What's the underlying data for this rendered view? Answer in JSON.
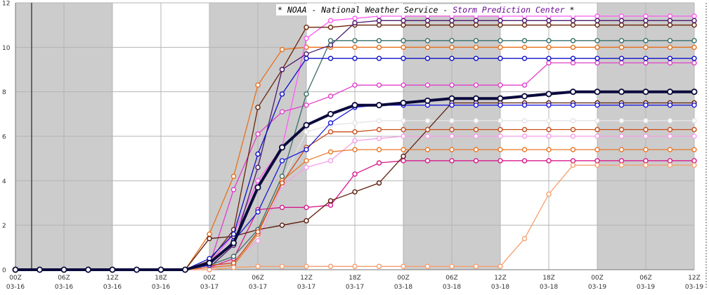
{
  "chart_data": {
    "type": "line",
    "title_parts": [
      {
        "text": "* NOAA - National Weather Service - ",
        "color": "#000000"
      },
      {
        "text": "Storm Prediction Center",
        "color": "#6a0d91"
      },
      {
        "text": " *",
        "color": "#000000"
      }
    ],
    "ylim": [
      0,
      12
    ],
    "yticks": [
      0,
      2,
      4,
      6,
      8,
      10,
      12
    ],
    "xlim": [
      0,
      84
    ],
    "xticks": [
      {
        "x": 0,
        "hour": "00Z",
        "date": "03-16"
      },
      {
        "x": 6,
        "hour": "06Z",
        "date": "03-16"
      },
      {
        "x": 12,
        "hour": "12Z",
        "date": "03-16"
      },
      {
        "x": 18,
        "hour": "18Z",
        "date": "03-16"
      },
      {
        "x": 24,
        "hour": "00Z",
        "date": "03-17"
      },
      {
        "x": 30,
        "hour": "06Z",
        "date": "03-17"
      },
      {
        "x": 36,
        "hour": "12Z",
        "date": "03-17"
      },
      {
        "x": 42,
        "hour": "18Z",
        "date": "03-17"
      },
      {
        "x": 48,
        "hour": "00Z",
        "date": "03-18"
      },
      {
        "x": 54,
        "hour": "06Z",
        "date": "03-18"
      },
      {
        "x": 60,
        "hour": "12Z",
        "date": "03-18"
      },
      {
        "x": 66,
        "hour": "18Z",
        "date": "03-18"
      },
      {
        "x": 72,
        "hour": "00Z",
        "date": "03-19"
      },
      {
        "x": 78,
        "hour": "06Z",
        "date": "03-19"
      },
      {
        "x": 84,
        "hour": "12Z",
        "date": "03-19"
      }
    ],
    "night_bands": [
      [
        0,
        12
      ],
      [
        24,
        36
      ],
      [
        48,
        60
      ],
      [
        72,
        84
      ]
    ],
    "x": [
      0,
      3,
      6,
      9,
      12,
      15,
      18,
      21,
      24,
      27,
      30,
      33,
      36,
      39,
      42,
      45,
      48,
      51,
      54,
      57,
      60,
      63,
      66,
      69,
      72,
      75,
      78,
      81,
      84
    ],
    "series": [
      {
        "color": "#e4e4e4",
        "values": [
          0,
          0,
          0,
          0,
          0,
          0,
          0,
          0,
          0.1,
          0.5,
          1.5,
          4.0,
          6.2,
          6.5,
          6.6,
          6.7,
          6.7,
          6.7,
          6.7,
          6.7,
          6.7,
          6.7,
          6.7,
          6.7,
          6.7,
          6.7,
          6.7,
          6.7,
          6.7
        ]
      },
      {
        "color": "#e8701c",
        "values": [
          0,
          0,
          0,
          0,
          0,
          0,
          0,
          0,
          1.6,
          4.2,
          8.3,
          9.9,
          10.0,
          10.0,
          10.0,
          10.0,
          10.0,
          10.0,
          10.0,
          10.0,
          10.0,
          10.0,
          10.0,
          10.0,
          10.0,
          10.0,
          10.0,
          10.0,
          10.0
        ]
      },
      {
        "color": "#f5a0e8",
        "values": [
          0,
          0,
          0,
          0,
          0,
          0,
          0,
          0,
          0,
          0.4,
          1.3,
          3.8,
          4.6,
          4.9,
          5.8,
          5.9,
          6.0,
          6.0,
          6.0,
          6.0,
          6.0,
          6.0,
          6.0,
          6.0,
          6.0,
          6.0,
          6.0,
          6.0,
          6.0
        ]
      },
      {
        "color": "#ff5cf4",
        "values": [
          0,
          0,
          0,
          0,
          0,
          0,
          0,
          0,
          0.3,
          1.6,
          4.0,
          5.5,
          10.4,
          11.2,
          11.3,
          11.4,
          11.4,
          11.4,
          11.4,
          11.4,
          11.4,
          11.4,
          11.4,
          11.4,
          11.4,
          11.4,
          11.4,
          11.4,
          11.4
        ]
      },
      {
        "color": "#e040c8",
        "values": [
          0,
          0,
          0,
          0,
          0,
          0,
          0,
          0,
          0.2,
          3.6,
          6.1,
          7.1,
          7.4,
          7.8,
          8.3,
          8.3,
          8.3,
          8.3,
          8.3,
          8.3,
          8.3,
          8.3,
          9.3,
          9.3,
          9.3,
          9.3,
          9.3,
          9.3,
          9.3
        ]
      },
      {
        "color": "#d81b8c",
        "values": [
          0,
          0,
          0,
          0,
          0,
          0,
          0,
          0,
          0.1,
          0.5,
          2.7,
          2.8,
          2.8,
          2.9,
          4.3,
          4.8,
          4.9,
          4.9,
          4.9,
          4.9,
          4.9,
          4.9,
          4.9,
          4.9,
          4.9,
          4.9,
          4.9,
          4.9,
          4.9
        ]
      },
      {
        "color": "#5a1a0a",
        "values": [
          0,
          0,
          0,
          0,
          0,
          0,
          0,
          0,
          1.4,
          1.5,
          1.8,
          2.0,
          2.2,
          3.1,
          3.5,
          3.9,
          5.1,
          6.3,
          7.5,
          7.5,
          7.5,
          7.5,
          7.5,
          7.5,
          7.5,
          7.5,
          7.5,
          7.5,
          7.5
        ]
      },
      {
        "color": "#6b2308",
        "values": [
          0,
          0,
          0,
          0,
          0,
          0,
          0,
          0,
          0.4,
          1.8,
          7.3,
          9.0,
          10.9,
          10.9,
          11.0,
          11.0,
          11.0,
          11.0,
          11.0,
          11.0,
          11.0,
          11.0,
          11.0,
          11.0,
          11.0,
          11.0,
          11.0,
          11.0,
          11.0
        ]
      },
      {
        "color": "#4a1a6a",
        "values": [
          0,
          0,
          0,
          0,
          0,
          0,
          0,
          0,
          0.1,
          1.1,
          4.6,
          9.0,
          9.7,
          10.1,
          11.1,
          11.2,
          11.2,
          11.2,
          11.2,
          11.2,
          11.2,
          11.2,
          11.2,
          11.2,
          11.2,
          11.2,
          11.2,
          11.2,
          11.2
        ]
      },
      {
        "color": "#3a6e6a",
        "values": [
          0,
          0,
          0,
          0,
          0,
          0,
          0,
          0,
          0.2,
          0.6,
          1.8,
          4.2,
          7.9,
          10.3,
          10.3,
          10.3,
          10.3,
          10.3,
          10.3,
          10.3,
          10.3,
          10.3,
          10.3,
          10.3,
          10.3,
          10.3,
          10.3,
          10.3,
          10.3
        ]
      },
      {
        "color": "#e87828",
        "values": [
          0,
          0,
          0,
          0,
          0,
          0,
          0,
          0,
          0.1,
          0.2,
          1.6,
          4.0,
          4.9,
          5.3,
          5.4,
          5.4,
          5.4,
          5.4,
          5.4,
          5.4,
          5.4,
          5.4,
          5.4,
          5.4,
          5.4,
          5.4,
          5.4,
          5.4,
          5.4
        ]
      },
      {
        "color": "#c8501c",
        "values": [
          0,
          0,
          0,
          0,
          0,
          0,
          0,
          0,
          0.2,
          0.3,
          1.7,
          3.9,
          5.5,
          6.2,
          6.2,
          6.3,
          6.3,
          6.3,
          6.3,
          6.3,
          6.3,
          6.3,
          6.3,
          6.3,
          6.3,
          6.3,
          6.3,
          6.3,
          6.3
        ]
      },
      {
        "color": "#f4a070",
        "values": [
          0,
          0,
          0,
          0,
          0,
          0,
          0,
          0,
          0,
          0.1,
          0.15,
          0.15,
          0.15,
          0.15,
          0.15,
          0.15,
          0.15,
          0.15,
          0.15,
          0.15,
          0.15,
          1.4,
          3.4,
          4.7,
          4.7,
          4.7,
          4.7,
          4.7,
          4.7
        ]
      },
      {
        "color": "#1010c8",
        "values": [
          0,
          0,
          0,
          0,
          0,
          0,
          0,
          0,
          0.5,
          1.6,
          5.2,
          7.9,
          9.5,
          9.5,
          9.5,
          9.5,
          9.5,
          9.5,
          9.5,
          9.5,
          9.5,
          9.5,
          9.5,
          9.5,
          9.5,
          9.5,
          9.5,
          9.5,
          9.5
        ]
      },
      {
        "color": "#1a1ad8",
        "values": [
          0,
          0,
          0,
          0,
          0,
          0,
          0,
          0,
          0.2,
          1.3,
          2.6,
          4.9,
          5.4,
          6.6,
          7.3,
          7.4,
          7.4,
          7.4,
          7.4,
          7.4,
          7.4,
          7.4,
          7.4,
          7.4,
          7.4,
          7.4,
          7.4,
          7.4,
          7.4
        ]
      },
      {
        "color": "#0a0a3c",
        "values": [
          0,
          0,
          0,
          0,
          0,
          0,
          0,
          0,
          0.3,
          1.2,
          3.7,
          5.5,
          6.5,
          7.0,
          7.4,
          7.4,
          7.5,
          7.6,
          7.7,
          7.7,
          7.7,
          7.8,
          7.9,
          8.0,
          8.0,
          8.0,
          8.0,
          8.0,
          8.0
        ],
        "bold": true
      }
    ]
  }
}
